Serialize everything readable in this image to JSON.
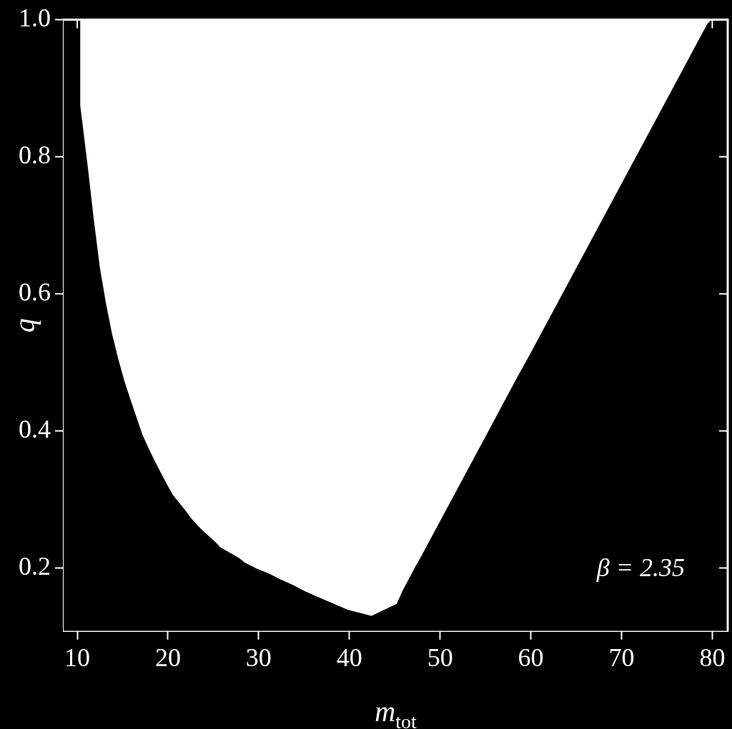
{
  "chart_data": {
    "type": "area",
    "xlabel": "m$_{tot}$",
    "ylabel": "q",
    "xlim": [
      8.5,
      81.7
    ],
    "ylim": [
      0.108,
      1.0
    ],
    "xticks": [
      10,
      20,
      30,
      40,
      50,
      60,
      70,
      80
    ],
    "yticks": [
      {
        "value": 0.2,
        "label": "0.2"
      },
      {
        "value": 0.4,
        "label": "0.4"
      },
      {
        "value": 0.6,
        "label": "0.6"
      },
      {
        "value": 0.8,
        "label": "0.8"
      },
      {
        "value": 1.0,
        "label": "1.0"
      }
    ],
    "annotations": [
      "β = 2.35"
    ],
    "series": [
      {
        "color": "#000000",
        "x": [
          8.5,
          10.25,
          10.25,
          11.08,
          11.75,
          12.42,
          13.09,
          13.75,
          14.42,
          15.09,
          15.75,
          16.42,
          17.09,
          17.76,
          18.42,
          19.09,
          19.76,
          20.43,
          21.09,
          21.76,
          22.43,
          23.09,
          23.76,
          24.43,
          25.1,
          25.76,
          26.43,
          27.76,
          28.43,
          29.77,
          31.1,
          32.44,
          33.77,
          35.1,
          36.44,
          39.78,
          42.44,
          45.28,
          45.95,
          46.61,
          47.28,
          48.0,
          49.5,
          51.0,
          52.5,
          54.0,
          55.5,
          57.0,
          58.5,
          60.0,
          61.5,
          63.0,
          64.5,
          66.0,
          67.5,
          69.0,
          70.5,
          72.0,
          73.5,
          75.0,
          76.5,
          78.0,
          79.5,
          80.0,
          81.7
        ],
        "values": [
          1.0,
          1.0,
          0.875,
          0.786,
          0.708,
          0.638,
          0.586,
          0.542,
          0.506,
          0.474,
          0.447,
          0.421,
          0.395,
          0.375,
          0.357,
          0.34,
          0.323,
          0.307,
          0.296,
          0.285,
          0.273,
          0.263,
          0.254,
          0.246,
          0.238,
          0.229,
          0.224,
          0.214,
          0.207,
          0.198,
          0.191,
          0.182,
          0.174,
          0.165,
          0.157,
          0.138,
          0.129,
          0.147,
          0.167,
          0.183,
          0.2,
          0.217,
          0.254,
          0.291,
          0.328,
          0.365,
          0.402,
          0.439,
          0.476,
          0.512,
          0.549,
          0.586,
          0.623,
          0.66,
          0.697,
          0.734,
          0.771,
          0.808,
          0.845,
          0.882,
          0.919,
          0.956,
          0.993,
          1.0,
          1.0
        ]
      }
    ]
  }
}
